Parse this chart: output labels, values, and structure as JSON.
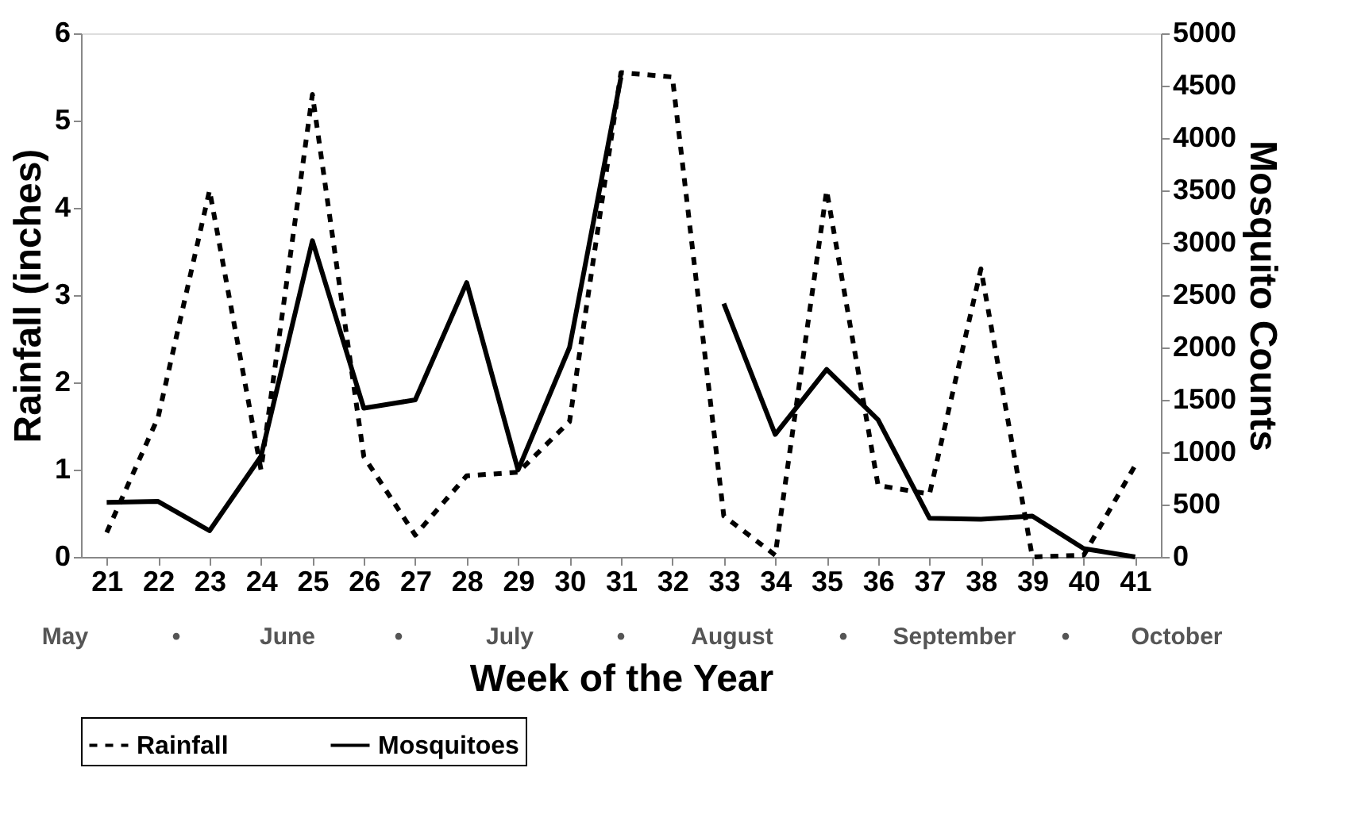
{
  "chart_data": {
    "type": "line",
    "xlabel": "Week of the  Year",
    "ylabel": "Rainfall (inches)",
    "y2label": "Mosquito Counts",
    "categories": [
      "21",
      "22",
      "23",
      "24",
      "25",
      "26",
      "27",
      "28",
      "29",
      "30",
      "31",
      "32",
      "33",
      "34",
      "35",
      "36",
      "37",
      "38",
      "39",
      "40",
      "41"
    ],
    "series": [
      {
        "name": "Rainfall",
        "color": "#000000",
        "line_style": "dashed",
        "values": [
          0.28,
          1.6,
          4.2,
          1.0,
          5.3,
          1.15,
          0.25,
          0.93,
          0.97,
          1.55,
          5.55,
          5.5,
          0.47,
          0.02,
          4.2,
          0.82,
          0.72,
          3.3,
          0,
          0.02,
          1.05
        ]
      },
      {
        "name": "Mosquitoes",
        "color": "#000000",
        "line_style": "solid",
        "axis": "y2",
        "values": [
          520,
          530,
          250,
          960,
          3020,
          1420,
          1500,
          2620,
          830,
          2000,
          4580,
          null,
          2420,
          1170,
          1790,
          1310,
          370,
          360,
          390,
          80,
          0
        ]
      }
    ],
    "ylim": [
      0,
      6
    ],
    "yticks": [
      0,
      1,
      2,
      3,
      4,
      5,
      6
    ],
    "y2lim": [
      0,
      5000
    ],
    "y2ticks": [
      0,
      500,
      1000,
      1500,
      2000,
      2500,
      3000,
      3500,
      4000,
      4500,
      5000
    ],
    "grid": false,
    "legend": "bottom",
    "marker": "none",
    "annotations": [
      "May",
      "•",
      "June",
      "•",
      "July",
      "•",
      "August",
      "•",
      "September",
      "•",
      "October"
    ]
  }
}
